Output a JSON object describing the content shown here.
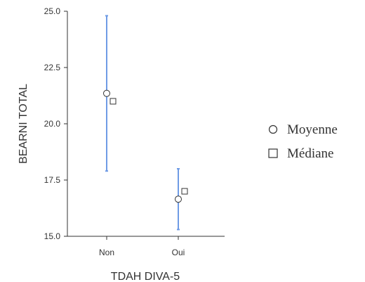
{
  "chart_data": {
    "type": "scatter",
    "xlabel": "TDAH DIVA-5",
    "ylabel": "BEARNI TOTAL",
    "categories": [
      "Non",
      "Oui"
    ],
    "ylim": [
      15.0,
      25.0
    ],
    "yticks": [
      "15.0",
      "17.5",
      "20.0",
      "22.5",
      "25.0"
    ],
    "series": [
      {
        "name": "Moyenne",
        "marker": "circle",
        "values": [
          21.35,
          16.65
        ]
      },
      {
        "name": "Médiane",
        "marker": "square",
        "values": [
          21.0,
          17.0
        ]
      }
    ],
    "error_bars": {
      "color": "#6f9be5",
      "lower": [
        17.9,
        15.3
      ],
      "upper": [
        24.8,
        18.0
      ]
    },
    "legend_position": "right",
    "grid": false
  }
}
